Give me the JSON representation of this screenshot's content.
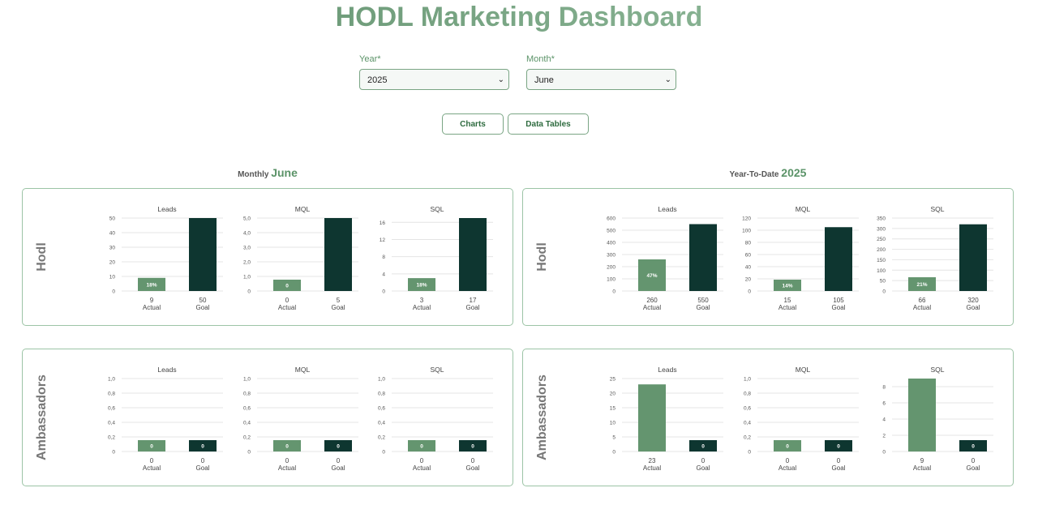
{
  "page": {
    "title": "HODL Marketing Dashboard"
  },
  "filters": {
    "year": {
      "label": "Year*",
      "value": "2025"
    },
    "month": {
      "label": "Month*",
      "value": "June"
    }
  },
  "view_buttons": {
    "charts": "Charts",
    "tables": "Data Tables"
  },
  "sections": {
    "monthly": {
      "prefix": "Monthly",
      "value": "June"
    },
    "ytd": {
      "prefix": "Year-To-Date",
      "value": "2025"
    }
  },
  "rows": {
    "hodl": "Hodl",
    "ambassadors": "Ambassadors"
  },
  "colors": {
    "actual": "#64956f",
    "goal": "#0e3630",
    "accent": "#5b9368",
    "border": "#9cc4a6"
  },
  "chart_data": [
    {
      "id": "monthly-hodl-leads",
      "type": "bar",
      "title": "Leads",
      "categories": [
        "Actual",
        "Goal"
      ],
      "values": [
        9,
        50
      ],
      "value_labels": [
        "9",
        "50"
      ],
      "bar_labels": [
        "18%",
        ""
      ],
      "ylim": [
        0,
        50
      ],
      "yticks": [
        "0",
        "10",
        "20",
        "30",
        "40",
        "50"
      ]
    },
    {
      "id": "monthly-hodl-mql",
      "type": "bar",
      "title": "MQL",
      "categories": [
        "Actual",
        "Goal"
      ],
      "values": [
        0,
        5
      ],
      "value_labels": [
        "0",
        "5"
      ],
      "bar_labels": [
        "0",
        ""
      ],
      "ylim": [
        0,
        5
      ],
      "yticks": [
        "0",
        "1,0",
        "2,0",
        "3,0",
        "4,0",
        "5,0"
      ]
    },
    {
      "id": "monthly-hodl-sql",
      "type": "bar",
      "title": "SQL",
      "categories": [
        "Actual",
        "Goal"
      ],
      "values": [
        3,
        17
      ],
      "value_labels": [
        "3",
        "17"
      ],
      "bar_labels": [
        "18%",
        ""
      ],
      "ylim": [
        0,
        17
      ],
      "yticks": [
        "0",
        "4",
        "8",
        "12",
        "16"
      ]
    },
    {
      "id": "ytd-hodl-leads",
      "type": "bar",
      "title": "Leads",
      "categories": [
        "Actual",
        "Goal"
      ],
      "values": [
        260,
        550
      ],
      "value_labels": [
        "260",
        "550"
      ],
      "bar_labels": [
        "47%",
        ""
      ],
      "ylim": [
        0,
        600
      ],
      "yticks": [
        "0",
        "100",
        "200",
        "300",
        "400",
        "500",
        "600"
      ]
    },
    {
      "id": "ytd-hodl-mql",
      "type": "bar",
      "title": "MQL",
      "categories": [
        "Actual",
        "Goal"
      ],
      "values": [
        15,
        105
      ],
      "value_labels": [
        "15",
        "105"
      ],
      "bar_labels": [
        "14%",
        ""
      ],
      "ylim": [
        0,
        120
      ],
      "yticks": [
        "0",
        "20",
        "40",
        "60",
        "80",
        "100",
        "120"
      ]
    },
    {
      "id": "ytd-hodl-sql",
      "type": "bar",
      "title": "SQL",
      "categories": [
        "Actual",
        "Goal"
      ],
      "values": [
        66,
        320
      ],
      "value_labels": [
        "66",
        "320"
      ],
      "bar_labels": [
        "21%",
        ""
      ],
      "ylim": [
        0,
        350
      ],
      "yticks": [
        "0",
        "50",
        "100",
        "150",
        "200",
        "250",
        "300",
        "350"
      ]
    },
    {
      "id": "monthly-amb-leads",
      "type": "bar",
      "title": "Leads",
      "categories": [
        "Actual",
        "Goal"
      ],
      "values": [
        0,
        0
      ],
      "value_labels": [
        "0",
        "0"
      ],
      "bar_labels": [
        "0",
        "0"
      ],
      "ylim": [
        0,
        1
      ],
      "yticks": [
        "0",
        "0,2",
        "0,4",
        "0,6",
        "0,8",
        "1,0"
      ]
    },
    {
      "id": "monthly-amb-mql",
      "type": "bar",
      "title": "MQL",
      "categories": [
        "Actual",
        "Goal"
      ],
      "values": [
        0,
        0
      ],
      "value_labels": [
        "0",
        "0"
      ],
      "bar_labels": [
        "0",
        "0"
      ],
      "ylim": [
        0,
        1
      ],
      "yticks": [
        "0",
        "0,2",
        "0,4",
        "0,6",
        "0,8",
        "1,0"
      ]
    },
    {
      "id": "monthly-amb-sql",
      "type": "bar",
      "title": "SQL",
      "categories": [
        "Actual",
        "Goal"
      ],
      "values": [
        0,
        0
      ],
      "value_labels": [
        "0",
        "0"
      ],
      "bar_labels": [
        "0",
        "0"
      ],
      "ylim": [
        0,
        1
      ],
      "yticks": [
        "0",
        "0,2",
        "0,4",
        "0,6",
        "0,8",
        "1,0"
      ]
    },
    {
      "id": "ytd-amb-leads",
      "type": "bar",
      "title": "Leads",
      "categories": [
        "Actual",
        "Goal"
      ],
      "values": [
        23,
        0
      ],
      "value_labels": [
        "23",
        "0"
      ],
      "bar_labels": [
        "",
        "0"
      ],
      "ylim": [
        0,
        25
      ],
      "yticks": [
        "0",
        "5",
        "10",
        "15",
        "20",
        "25"
      ]
    },
    {
      "id": "ytd-amb-mql",
      "type": "bar",
      "title": "MQL",
      "categories": [
        "Actual",
        "Goal"
      ],
      "values": [
        0,
        0
      ],
      "value_labels": [
        "0",
        "0"
      ],
      "bar_labels": [
        "0",
        "0"
      ],
      "ylim": [
        0,
        1
      ],
      "yticks": [
        "0",
        "0,2",
        "0,4",
        "0,6",
        "0,8",
        "1,0"
      ]
    },
    {
      "id": "ytd-amb-sql",
      "type": "bar",
      "title": "SQL",
      "categories": [
        "Actual",
        "Goal"
      ],
      "values": [
        9,
        0
      ],
      "value_labels": [
        "9",
        "0"
      ],
      "bar_labels": [
        "",
        "0"
      ],
      "ylim": [
        0,
        9
      ],
      "yticks": [
        "0",
        "2",
        "4",
        "6",
        "8"
      ]
    }
  ]
}
